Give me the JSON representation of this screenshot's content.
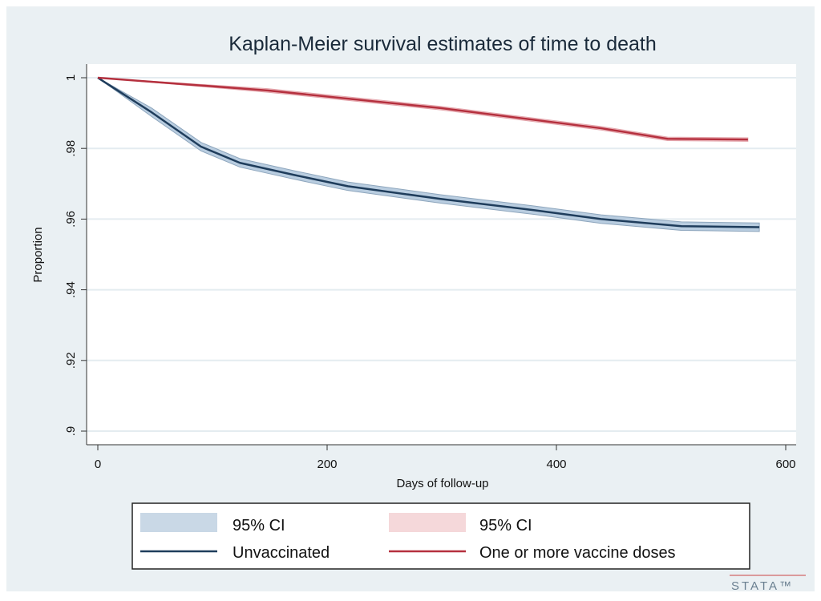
{
  "chart_data": {
    "type": "line",
    "title": "Kaplan-Meier survival estimates of time to death",
    "xlabel": "Days of follow-up",
    "ylabel": "Proportion",
    "xlim": [
      0,
      600
    ],
    "ylim": [
      0.9,
      1.0
    ],
    "xticks": [
      0,
      200,
      400,
      600
    ],
    "xtick_labels": [
      "0",
      "200",
      "400",
      "600"
    ],
    "yticks": [
      0.9,
      0.92,
      0.94,
      0.96,
      0.98,
      1.0
    ],
    "ytick_labels": [
      ".9",
      ".92",
      ".94",
      ".96",
      ".98",
      "1"
    ],
    "grid": true,
    "legend_placement": "bottom",
    "series": [
      {
        "name": "Unvaccinated",
        "ci_name": "95% CI",
        "color": "#1f3d5c",
        "ci_color": "#b9cde0",
        "x": [
          0,
          47,
          90,
          124,
          171,
          218,
          299,
          381,
          439,
          509,
          577
        ],
        "y": [
          1.0,
          0.9902,
          0.9805,
          0.9759,
          0.9725,
          0.9693,
          0.9657,
          0.9625,
          0.96,
          0.958,
          0.9577
        ],
        "ci_halfwidth": 0.0012
      },
      {
        "name": "One or more vaccine doses",
        "ci_name": "95% CI",
        "color": "#b5303e",
        "ci_color": "#f0c4c8",
        "x": [
          0,
          148,
          299,
          439,
          497,
          567
        ],
        "y": [
          1.0,
          0.9964,
          0.9914,
          0.9857,
          0.9827,
          0.9825
        ],
        "ci_halfwidth": 0.0005
      }
    ]
  },
  "watermark": "stata"
}
